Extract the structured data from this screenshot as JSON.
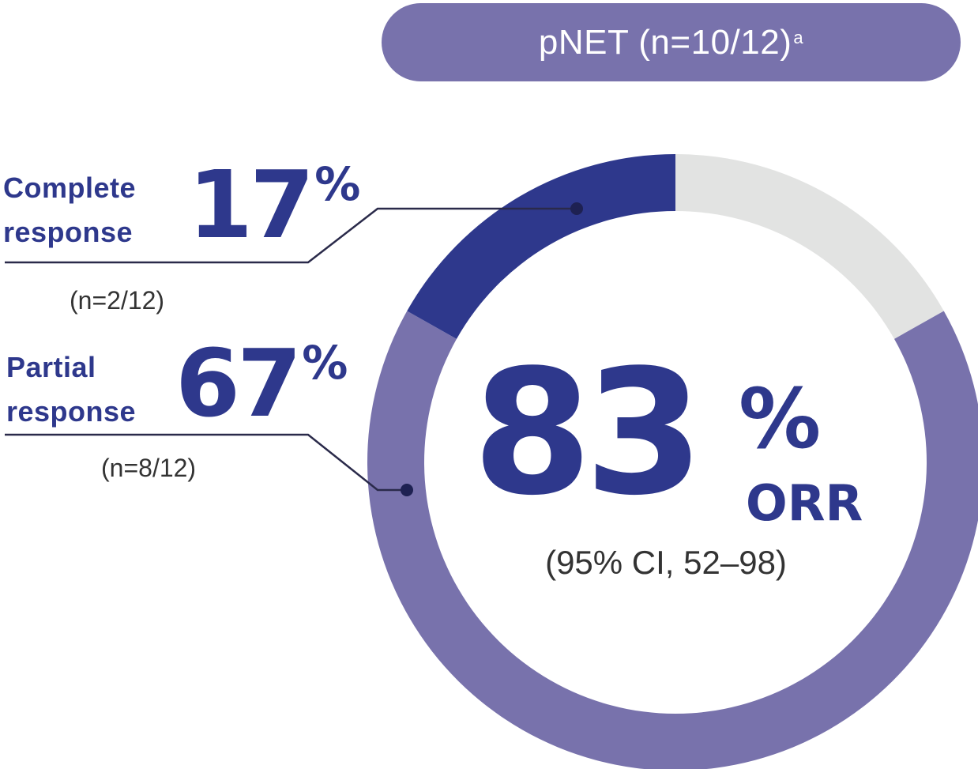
{
  "header": {
    "text": "pNET (n=10/12)",
    "superscript": "a"
  },
  "chart_data": {
    "type": "pie",
    "style": "donut",
    "slices": [
      {
        "name": "Complete response",
        "percent": 17,
        "n": "(n=2/12)",
        "color": "#2e388c"
      },
      {
        "name": "Partial response",
        "percent": 67,
        "n": "(n=8/12)",
        "color": "#7872ac"
      },
      {
        "name": "",
        "percent": 17,
        "color": "#e2e3e2"
      }
    ],
    "center": {
      "value": "83",
      "unit": "%",
      "label": "ORR",
      "ci": "(95% CI, 52–98)"
    }
  },
  "callouts": {
    "complete": {
      "line1": "Complete",
      "line2": "response",
      "value": "17",
      "unit": "%",
      "n": "(n=2/12)"
    },
    "partial": {
      "line1": "Partial",
      "line2": "response",
      "value": "67",
      "unit": "%",
      "n": "(n=8/12)"
    }
  },
  "colors": {
    "dark_blue": "#2e388c",
    "purple": "#7872ac",
    "light_gray": "#e2e3e2",
    "text_gray": "#333333"
  }
}
